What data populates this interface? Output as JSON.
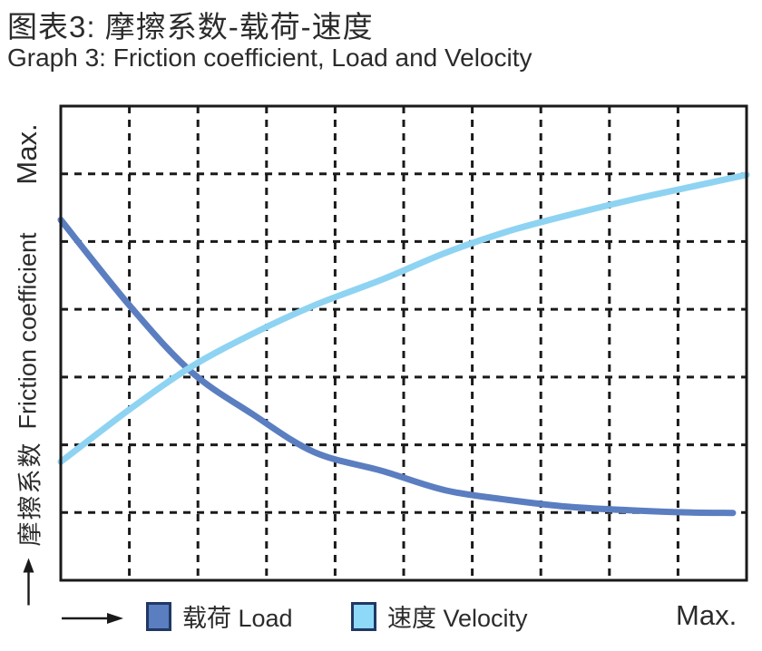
{
  "title": {
    "zh": "图表3:  摩擦系数-载荷-速度",
    "en": "Graph 3: Friction coefficient, Load and Velocity"
  },
  "y_axis": {
    "max_label": "Max.",
    "label_zh": "摩擦系数",
    "label_en": "Friction coefficient"
  },
  "x_axis": {
    "max_label": "Max."
  },
  "legend": {
    "swatch_border": "#203864",
    "items": [
      {
        "id": "load",
        "label": "载荷 Load",
        "color": "#5b7ec1"
      },
      {
        "id": "velocity",
        "label": "速度 Velocity",
        "color": "#8ed8f8"
      }
    ]
  },
  "colors": {
    "grid": "#1a1a1a",
    "plot_border": "#1a1a1a",
    "text": "#2b2b2b",
    "load_curve": "#5b7ec1",
    "velocity_curve": "#8ed3f2"
  },
  "chart_data": {
    "type": "line",
    "title": "图表3: 摩擦系数-载荷-速度 / Graph 3: Friction coefficient, Load and Velocity",
    "xlabel": "载荷 Load / 速度 Velocity (0 → Max.)",
    "ylabel": "摩擦系数 Friction coefficient (0 → Max.)",
    "axes_note": "Qualitative axes without numeric ticks; both axes run from 0 to Max. Values below are normalized 0–1 fractions of Max.",
    "x_range": [
      0,
      1
    ],
    "y_range": [
      0,
      1
    ],
    "grid": {
      "cols": 10,
      "rows": 7,
      "style": "dashed"
    },
    "legend_position": "bottom",
    "series": [
      {
        "id": "load",
        "name": "载荷 Load",
        "color": "#5b7ec1",
        "shape": "decreasing convex decay, steep at first, levelling off near 0.14 of Max",
        "x": [
          0,
          0.1,
          0.19,
          0.28,
          0.37,
          0.47,
          0.56,
          0.65,
          0.74,
          0.84,
          0.92,
          0.98
        ],
        "y": [
          0.76,
          0.58,
          0.44,
          0.35,
          0.27,
          0.23,
          0.19,
          0.17,
          0.155,
          0.147,
          0.143,
          0.142
        ]
      },
      {
        "id": "velocity",
        "name": "速度 Velocity",
        "color": "#8ed3f2",
        "shape": "increasing concave rise toward about 0.86 of Max",
        "x": [
          0,
          0.1,
          0.19,
          0.28,
          0.37,
          0.47,
          0.56,
          0.65,
          0.74,
          0.84,
          0.92,
          1.0
        ],
        "y": [
          0.25,
          0.36,
          0.45,
          0.52,
          0.58,
          0.635,
          0.69,
          0.735,
          0.77,
          0.805,
          0.83,
          0.855
        ]
      }
    ],
    "crossing_point": {
      "x": 0.19,
      "y": 0.445
    }
  }
}
